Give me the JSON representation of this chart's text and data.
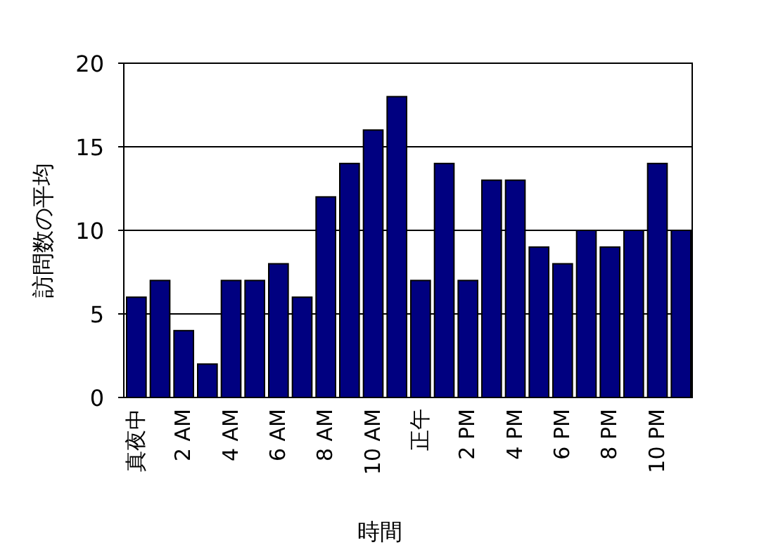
{
  "chart_data": {
    "type": "bar",
    "xlabel": "時間",
    "ylabel": "訪問数の平均",
    "categories": [
      "真夜中",
      null,
      "2 AM",
      null,
      "4 AM",
      null,
      "6 AM",
      null,
      "8 AM",
      null,
      "10 AM",
      null,
      "正午",
      null,
      "2 PM",
      null,
      "4 PM",
      null,
      "6 PM",
      null,
      "8 PM",
      null,
      "10 PM",
      null
    ],
    "values": [
      6,
      7,
      4,
      2,
      7,
      7,
      8,
      6,
      12,
      14,
      16,
      18,
      7,
      14,
      7,
      13,
      13,
      9,
      8,
      10,
      9,
      10,
      14,
      10
    ],
    "color": "#000080",
    "ylim": [
      0,
      20
    ],
    "yticks": [
      0,
      5,
      10,
      15,
      20
    ],
    "grid": "y"
  }
}
